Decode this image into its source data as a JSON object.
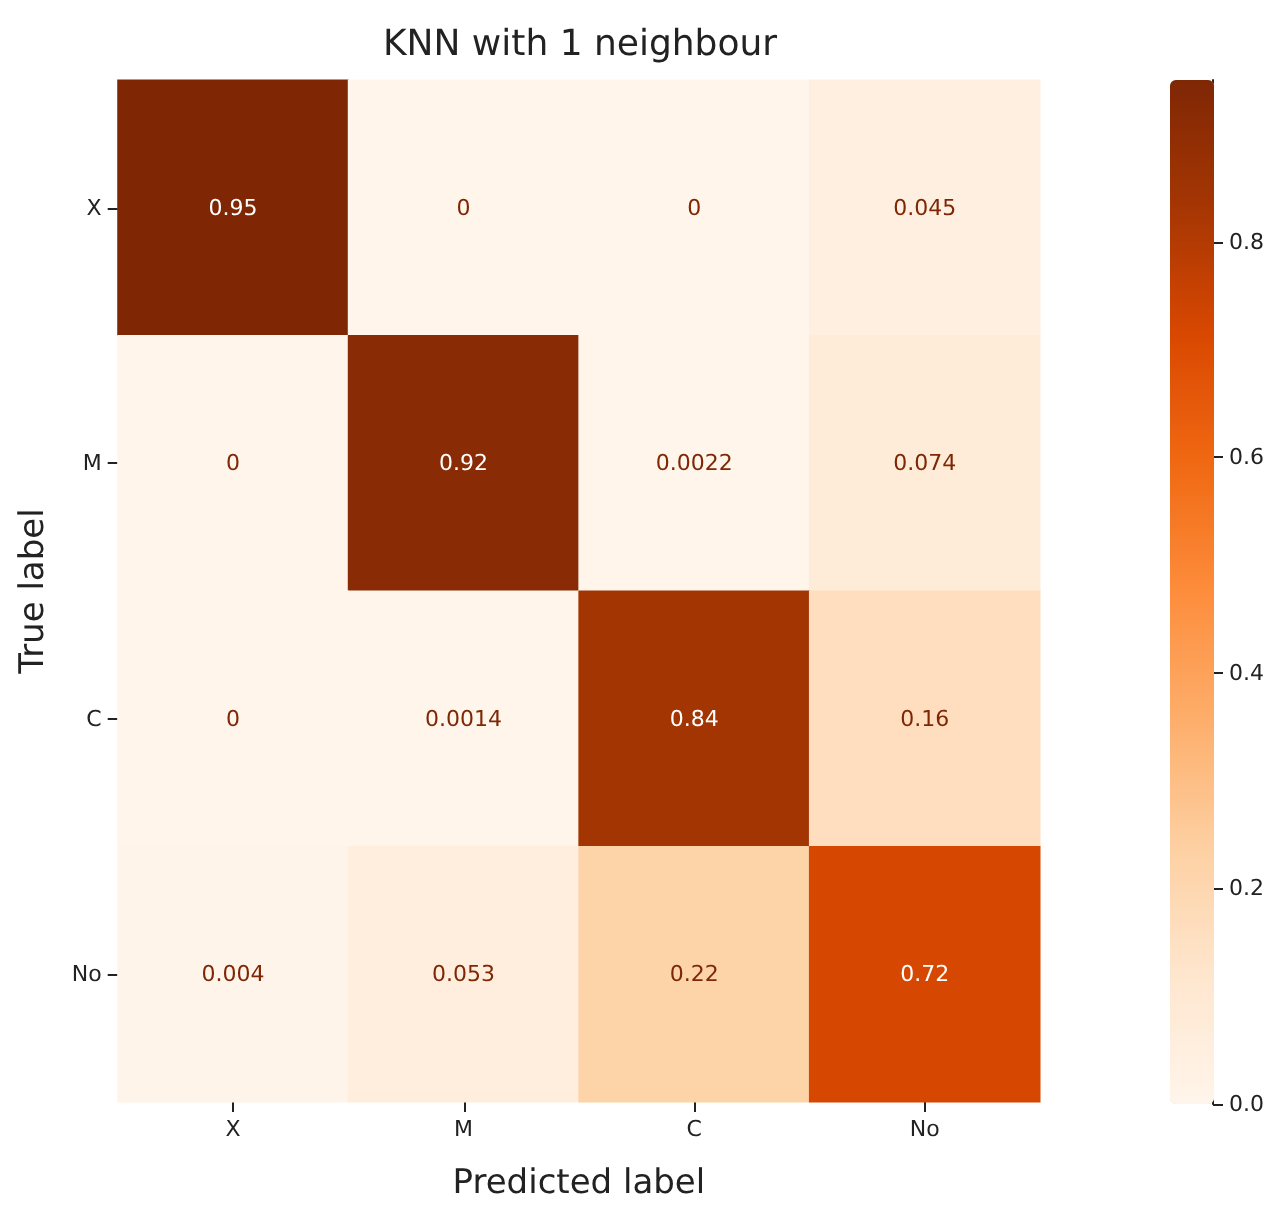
{
  "chart_data": {
    "type": "heatmap",
    "title": "KNN with 1 neighbour",
    "xlabel": "Predicted label",
    "ylabel": "True label",
    "categories": [
      "X",
      "M",
      "C",
      "No"
    ],
    "y_categories": [
      "X",
      "M",
      "C",
      "No"
    ],
    "cells": [
      [
        0.95,
        0,
        0,
        0.045
      ],
      [
        0,
        0.92,
        0.0022,
        0.074
      ],
      [
        0,
        0.0014,
        0.84,
        0.16
      ],
      [
        0.004,
        0.053,
        0.22,
        0.72
      ]
    ],
    "clim": [
      0,
      0.95
    ],
    "cticks": [
      {
        "value": 0,
        "label": "0.0"
      },
      {
        "value": 0.2,
        "label": "0.2"
      },
      {
        "value": 0.4,
        "label": "0.4"
      },
      {
        "value": 0.6,
        "label": "0.6"
      },
      {
        "value": 0.8,
        "label": "0.8"
      }
    ],
    "data_labels": true
  }
}
